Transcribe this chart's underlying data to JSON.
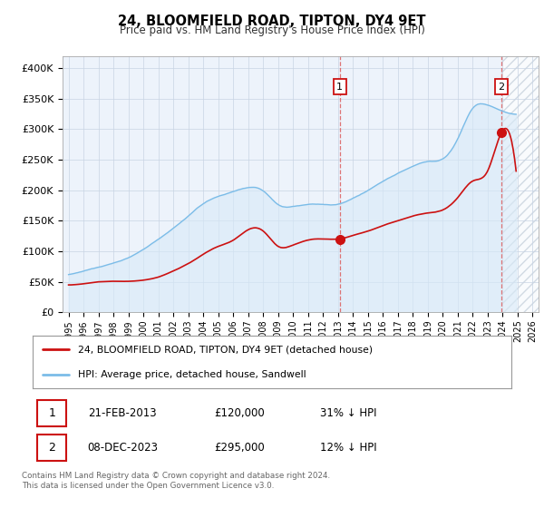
{
  "title": "24, BLOOMFIELD ROAD, TIPTON, DY4 9ET",
  "subtitle": "Price paid vs. HM Land Registry's House Price Index (HPI)",
  "ylim": [
    0,
    420000
  ],
  "yticks": [
    0,
    50000,
    100000,
    150000,
    200000,
    250000,
    300000,
    350000,
    400000
  ],
  "ytick_labels": [
    "£0",
    "£50K",
    "£100K",
    "£150K",
    "£200K",
    "£250K",
    "£300K",
    "£350K",
    "£400K"
  ],
  "xlim_start": 1994.6,
  "xlim_end": 2026.4,
  "xtick_years": [
    1995,
    1996,
    1997,
    1998,
    1999,
    2000,
    2001,
    2002,
    2003,
    2004,
    2005,
    2006,
    2007,
    2008,
    2009,
    2010,
    2011,
    2012,
    2013,
    2014,
    2015,
    2016,
    2017,
    2018,
    2019,
    2020,
    2021,
    2022,
    2023,
    2024,
    2025,
    2026
  ],
  "sale1_date": 2013.12,
  "sale1_price": 120000,
  "sale1_label": "1",
  "sale2_date": 2023.92,
  "sale2_price": 295000,
  "sale2_label": "2",
  "hpi_color": "#7bbce8",
  "hpi_fill_color": "#d8eaf8",
  "price_color": "#cc1111",
  "dashed_line_color": "#dd6666",
  "background_color": "#edf3fb",
  "grid_color": "#c8d4e4",
  "legend1_text": "24, BLOOMFIELD ROAD, TIPTON, DY4 9ET (detached house)",
  "legend2_text": "HPI: Average price, detached house, Sandwell",
  "note1_label": "1",
  "note1_date": "21-FEB-2013",
  "note1_price": "£120,000",
  "note1_hpi": "31% ↓ HPI",
  "note2_label": "2",
  "note2_date": "08-DEC-2023",
  "note2_price": "£295,000",
  "note2_hpi": "12% ↓ HPI",
  "footer": "Contains HM Land Registry data © Crown copyright and database right 2024.\nThis data is licensed under the Open Government Licence v3.0.",
  "hpi_key_x": [
    1995,
    1996,
    1997,
    1998,
    1999,
    2000,
    2001,
    2002,
    2003,
    2004,
    2005,
    2006,
    2007,
    2008,
    2009,
    2010,
    2011,
    2012,
    2013,
    2014,
    2015,
    2016,
    2017,
    2018,
    2019,
    2020,
    2021,
    2022,
    2023,
    2024,
    2024.9
  ],
  "hpi_key_y": [
    62000,
    67000,
    74000,
    81000,
    90000,
    103000,
    120000,
    138000,
    158000,
    178000,
    190000,
    198000,
    205000,
    200000,
    178000,
    175000,
    178000,
    178000,
    178000,
    188000,
    200000,
    215000,
    228000,
    240000,
    248000,
    252000,
    285000,
    335000,
    340000,
    330000,
    325000
  ],
  "price_key_x": [
    1995,
    1996,
    1997,
    1998,
    1999,
    2000,
    2001,
    2002,
    2003,
    2004,
    2005,
    2006,
    2007,
    2008,
    2009,
    2010,
    2011,
    2012,
    2013.12,
    2014,
    2015,
    2016,
    2017,
    2018,
    2019,
    2020,
    2021,
    2022,
    2023,
    2023.92,
    2024.9
  ],
  "price_key_y": [
    45000,
    47000,
    50000,
    51000,
    51000,
    53000,
    58000,
    68000,
    80000,
    95000,
    108000,
    118000,
    135000,
    133000,
    108000,
    110000,
    118000,
    120000,
    120000,
    126000,
    133000,
    142000,
    150000,
    158000,
    163000,
    168000,
    188000,
    215000,
    232000,
    295000,
    232000
  ]
}
